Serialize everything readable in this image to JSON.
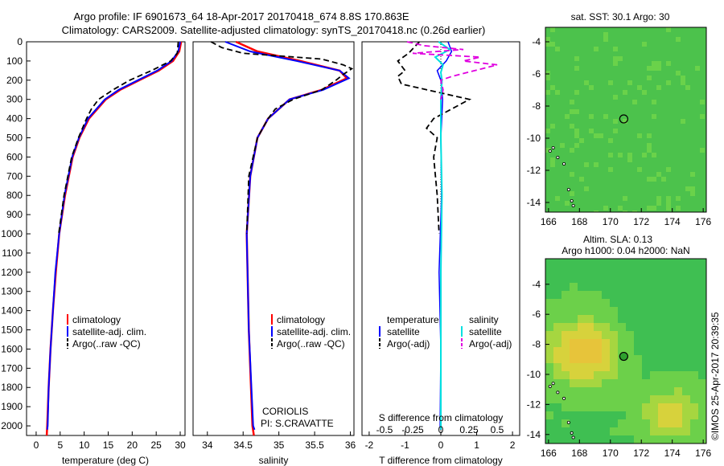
{
  "header": {
    "line1": "Argo profile: IF 6901673_64 18-Apr-2017 20170418_674 8.8S 170.863E",
    "line2": "Climatology: CARS2009. Satellite-adjusted climatology: synTS_20170418.nc (0.26d earlier)"
  },
  "colors": {
    "clim": "#ff0000",
    "sat": "#0000ff",
    "argo": "#000000",
    "sal_sat": "#00e0e0",
    "sal_argo": "#e000e0"
  },
  "depth_axis": {
    "min": 0,
    "max": 2050,
    "ticks": [
      0,
      100,
      200,
      300,
      400,
      500,
      600,
      700,
      800,
      900,
      1000,
      1100,
      1200,
      1300,
      1400,
      1500,
      1600,
      1700,
      1800,
      1900,
      2000
    ]
  },
  "temp_panel": {
    "xlabel": "temperature (deg C)",
    "xlim": [
      -2,
      31
    ],
    "xticks": [
      0,
      5,
      10,
      15,
      20,
      25,
      30
    ],
    "legend": [
      "climatology",
      "satellite-adj. clim.",
      "Argo(..raw -QC)"
    ],
    "chart_data": {
      "type": "line",
      "series": [
        {
          "name": "climatology",
          "depth": [
            0,
            50,
            100,
            150,
            200,
            250,
            300,
            400,
            500,
            600,
            800,
            1000,
            1200,
            1400,
            1600,
            1800,
            2000,
            2050
          ],
          "values": [
            30.2,
            29.8,
            28.5,
            25.5,
            21.5,
            17.5,
            14.5,
            11.0,
            9.0,
            7.6,
            6.0,
            4.8,
            4.1,
            3.5,
            3.0,
            2.6,
            2.3,
            2.2
          ]
        },
        {
          "name": "satellite-adj. clim.",
          "depth": [
            0,
            50,
            100,
            150,
            200,
            250,
            300,
            400,
            500,
            600,
            800,
            1000,
            1200,
            1400,
            1600,
            1800,
            2000,
            2020
          ],
          "values": [
            30.0,
            29.6,
            28.2,
            25.2,
            21.2,
            17.2,
            14.3,
            10.8,
            8.9,
            7.5,
            5.9,
            4.8,
            4.0,
            3.5,
            3.0,
            2.6,
            2.4,
            2.3
          ]
        },
        {
          "name": "Argo(..raw -QC)",
          "depth": [
            0,
            60,
            100,
            150,
            200,
            250,
            300,
            350,
            400,
            500,
            600,
            800,
            1000
          ],
          "values": [
            29.6,
            29.4,
            28.0,
            24.0,
            19.5,
            16.0,
            13.0,
            11.5,
            10.5,
            8.8,
            7.4,
            5.8,
            4.7
          ]
        }
      ]
    }
  },
  "sal_panel": {
    "xlabel": "salinity",
    "xlim": [
      33.8,
      36.05
    ],
    "xticks": [
      34,
      34.5,
      35,
      35.5,
      36
    ],
    "xtick_labels": [
      "34",
      "34.5",
      "35",
      "35.5",
      "36"
    ],
    "legend": [
      "climatology",
      "satellite-adj. clim.",
      "Argo(..raw -QC)"
    ],
    "source": "CORIOLIS",
    "pi": "PI: S.CRAVATTE",
    "chart_data": {
      "type": "line",
      "series": [
        {
          "name": "climatology",
          "depth": [
            0,
            50,
            100,
            150,
            190,
            250,
            300,
            400,
            500,
            700,
            1000,
            1500,
            2000,
            2050
          ],
          "values": [
            34.4,
            34.7,
            35.3,
            35.85,
            35.95,
            35.6,
            35.15,
            34.85,
            34.7,
            34.6,
            34.55,
            34.58,
            34.63,
            34.65
          ]
        },
        {
          "name": "satellite-adj. clim.",
          "depth": [
            0,
            50,
            100,
            150,
            190,
            250,
            300,
            400,
            500,
            700,
            1000,
            1500,
            2000,
            2020
          ],
          "values": [
            34.25,
            34.6,
            35.25,
            35.85,
            35.98,
            35.62,
            35.15,
            34.85,
            34.7,
            34.6,
            34.55,
            34.58,
            34.64,
            34.66
          ]
        },
        {
          "name": "Argo(..raw -QC)",
          "depth": [
            0,
            30,
            60,
            90,
            120,
            140,
            170,
            200,
            250,
            300,
            350,
            400,
            500,
            700,
            1000
          ],
          "values": [
            34.05,
            34.2,
            34.5,
            35.6,
            35.9,
            36.02,
            35.9,
            35.8,
            35.6,
            35.2,
            34.95,
            34.85,
            34.7,
            34.58,
            34.55
          ]
        }
      ]
    }
  },
  "diff_panel": {
    "top_label": "S difference from climatology",
    "xlabel": "T difference from climatology",
    "xlim": [
      -2.2,
      2.2
    ],
    "t_ticks": [
      -2,
      -1,
      0,
      1,
      2
    ],
    "s_ticks": [
      "-0.5",
      "-0.25",
      "0",
      "0.25",
      "0.5"
    ],
    "s_tick_values": [
      -0.5,
      -0.25,
      0,
      0.25,
      0.5
    ],
    "legend": {
      "temperature": "temperature",
      "salinity": "salinity",
      "satellite": "satellite",
      "argo": "Argo(-adj)"
    },
    "chart_data": {
      "type": "line",
      "series": [
        {
          "name": "T satellite",
          "depth": [
            0,
            50,
            100,
            150,
            200,
            300,
            500,
            800,
            1200,
            1600,
            2000,
            2020
          ],
          "values": [
            0.2,
            0.3,
            0.15,
            -0.1,
            0,
            0.05,
            0,
            0.02,
            -0.05,
            0,
            -0.02,
            0
          ]
        },
        {
          "name": "T Argo(-adj)",
          "depth": [
            0,
            60,
            100,
            150,
            180,
            220,
            300,
            350,
            400,
            450,
            500,
            600,
            700,
            800,
            1000
          ],
          "values": [
            -0.6,
            -0.9,
            -1.2,
            -1.0,
            -1.2,
            -1.1,
            0.8,
            0.3,
            -0.2,
            -0.4,
            -0.1,
            -0.2,
            -0.15,
            -0.1,
            -0.05
          ]
        },
        {
          "name": "S satellite",
          "depth": [
            0,
            40,
            80,
            120,
            160,
            200,
            300,
            500,
            800,
            1200,
            1600,
            2000,
            2020
          ],
          "values": [
            -0.02,
            0.08,
            -0.05,
            0.02,
            0,
            0.01,
            0,
            0,
            0.01,
            0,
            0,
            0,
            0
          ]
        },
        {
          "name": "S Argo(-adj)",
          "depth": [
            0,
            20,
            40,
            60,
            80,
            100,
            120,
            150,
            180,
            200,
            250,
            300
          ],
          "values": [
            -0.3,
            -0.15,
            0.2,
            -0.25,
            0.35,
            0.2,
            0.5,
            0.3,
            0.1,
            0,
            0.02,
            0
          ]
        }
      ]
    }
  },
  "sst_map": {
    "title": "sat. SST: 30.1 Argo: 30",
    "xticks": [
      166,
      168,
      170,
      172,
      174,
      176
    ],
    "yticks": [
      -4,
      -6,
      -8,
      -10,
      -12,
      -14
    ],
    "xlim": [
      165.8,
      176.2
    ],
    "ylim": [
      -14.6,
      -3.1
    ],
    "argo_lon": 170.863,
    "argo_lat": -8.8
  },
  "sla_map": {
    "title1": "Altim. SLA: 0.13",
    "title2": "Argo h1000: 0.04 h2000: NaN",
    "xticks": [
      166,
      168,
      170,
      172,
      174,
      176
    ],
    "yticks": [
      -4,
      -6,
      -8,
      -10,
      -12,
      -14
    ],
    "xlim": [
      165.8,
      176.2
    ],
    "ylim": [
      -14.6,
      -2.3
    ],
    "argo_lon": 170.863,
    "argo_lat": -8.8
  },
  "stamp": "©IMOS 25-Apr-2017 20:39:35"
}
